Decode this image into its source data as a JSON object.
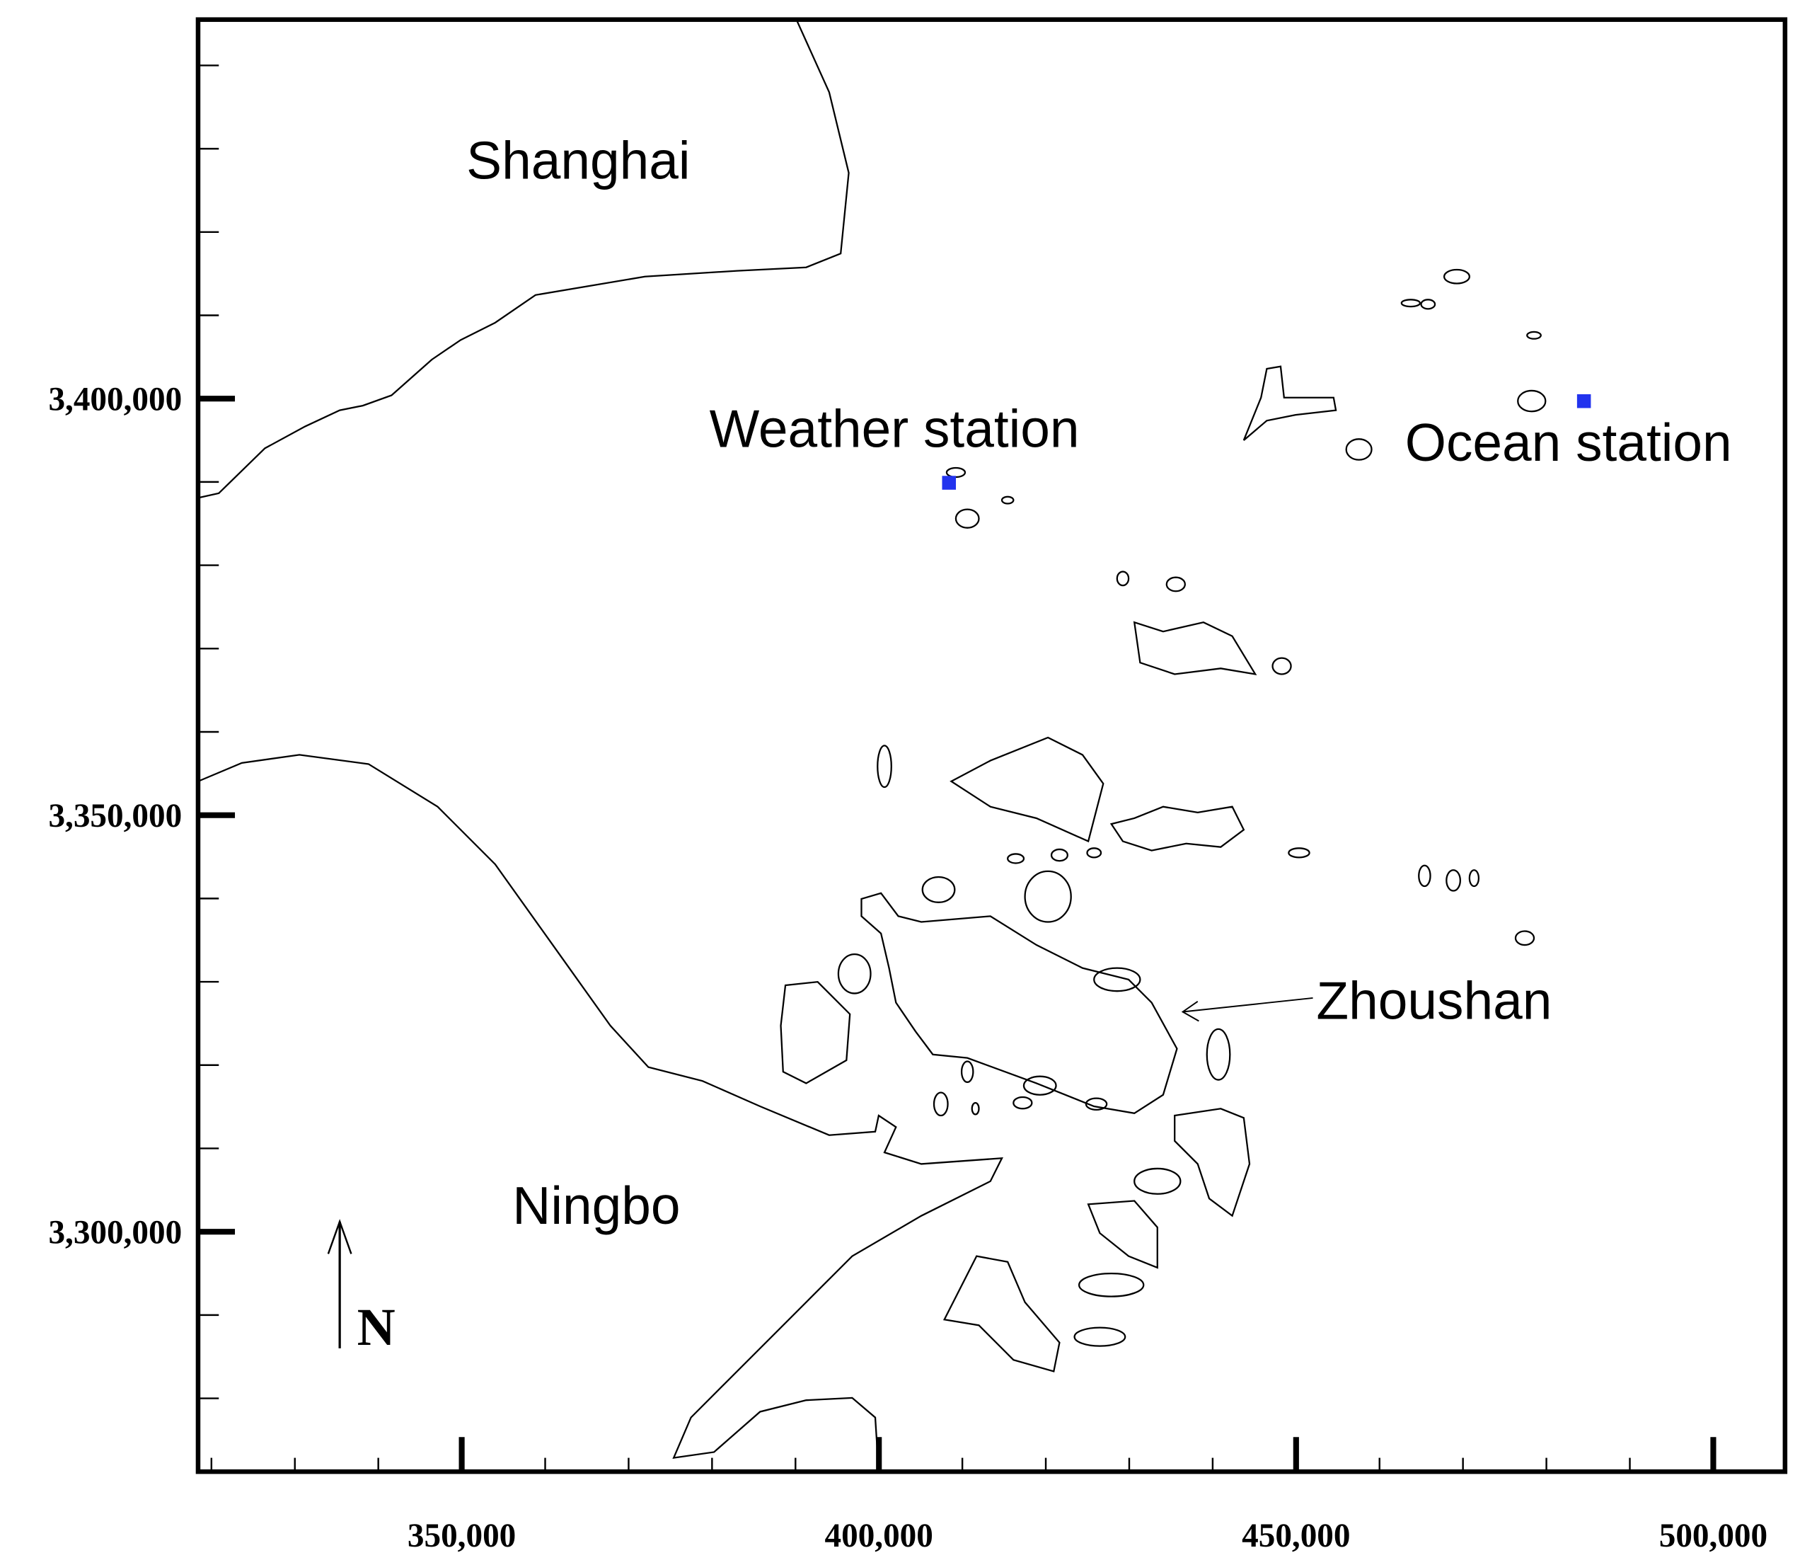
{
  "map": {
    "labels": {
      "shanghai": "Shanghai",
      "ningbo": "Ningbo",
      "zhoushan": "Zhoushan",
      "north": "N"
    },
    "xlim": [
      318400,
      508600
    ],
    "ylim": [
      3271200,
      3445500
    ],
    "xticks": [
      {
        "value": 350000,
        "label": "350,000"
      },
      {
        "value": 400000,
        "label": "400,000"
      },
      {
        "value": 450000,
        "label": "450,000"
      },
      {
        "value": 500000,
        "label": "500,000"
      }
    ],
    "yticks": [
      {
        "value": 3300000,
        "label": "3,300,000"
      },
      {
        "value": 3350000,
        "label": "3,350,000"
      },
      {
        "value": 3400000,
        "label": "3,400,000"
      }
    ],
    "minor_xticks": [
      320000,
      330000,
      340000,
      360000,
      370000,
      380000,
      390000,
      410000,
      420000,
      430000,
      440000,
      460000,
      470000,
      480000,
      490000
    ],
    "minor_yticks": [
      3280000,
      3290000,
      3310000,
      3320000,
      3330000,
      3340000,
      3360000,
      3370000,
      3380000,
      3390000,
      3410000,
      3420000,
      3430000,
      3440000
    ],
    "stations": [
      {
        "name": "Weather station",
        "x": 408400,
        "y": 3389900,
        "color": "#2233ee"
      },
      {
        "name": "Ocean station",
        "x": 484500,
        "y": 3399700,
        "color": "#2233ee"
      }
    ]
  }
}
